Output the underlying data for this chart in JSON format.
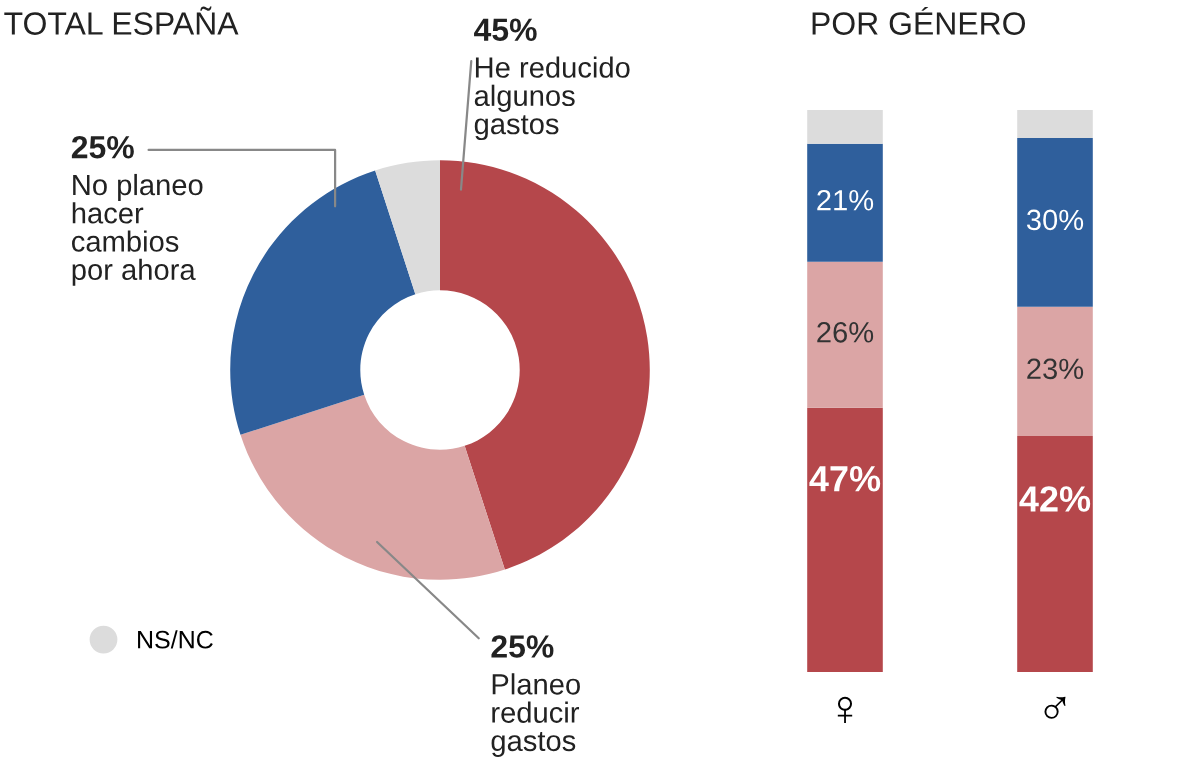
{
  "chart_data": [
    {
      "type": "donut",
      "title": "TOTAL ESPAÑA",
      "categories": [
        "He reducido algunos gastos",
        "Planeo reducir gastos",
        "No planeo hacer cambios por ahora",
        "NS/NC"
      ],
      "values": [
        45,
        25,
        25,
        5
      ],
      "colors": [
        "#b5474b",
        "#dba5a5",
        "#2f5f9c",
        "#dcdcdc"
      ],
      "value_labels": [
        "45%",
        "25%",
        "25%",
        null
      ],
      "legend": "bottom left"
    },
    {
      "type": "bar",
      "title": "POR GÉNERO",
      "categories": [
        "♀",
        "♂"
      ],
      "stacked": true,
      "legend": false,
      "grid": false,
      "series": [
        {
          "color": "#b5474b",
          "values": [
            47,
            42
          ],
          "value_labels": [
            "47%",
            "42%"
          ]
        },
        {
          "color": "#dba5a5",
          "values": [
            26,
            23
          ],
          "value_labels": [
            "26%",
            "23%"
          ]
        },
        {
          "color": "#2f5f9c",
          "values": [
            21,
            30
          ],
          "value_labels": [
            "21%",
            "30%"
          ]
        },
        {
          "color": "#dcdcdc",
          "values": [
            6,
            5
          ],
          "value_labels": [
            null,
            null
          ]
        }
      ]
    }
  ]
}
